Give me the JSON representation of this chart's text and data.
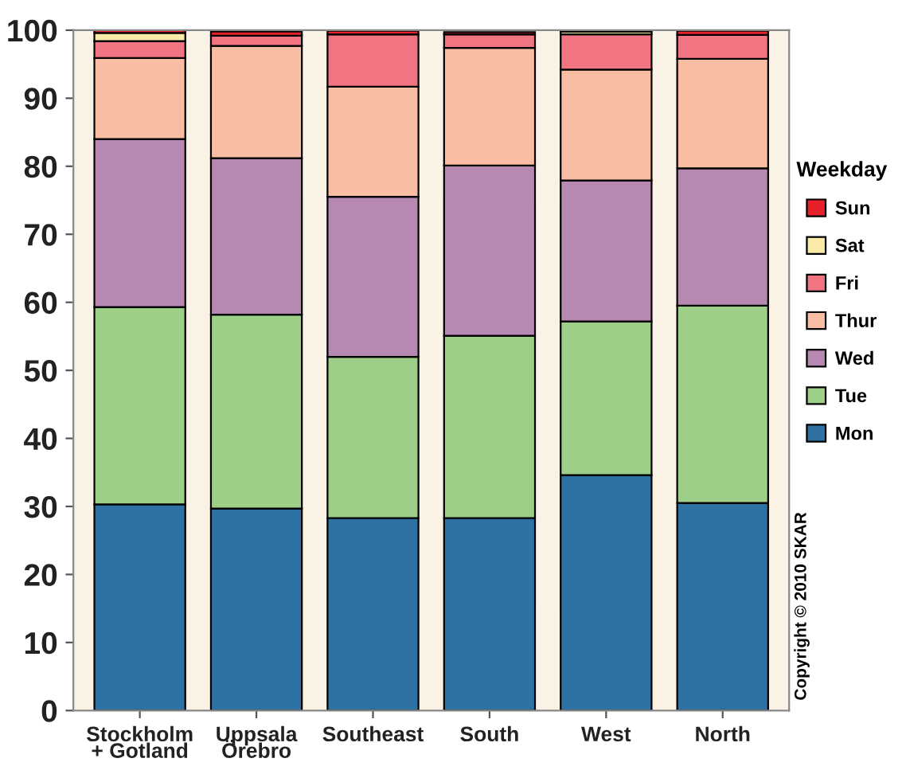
{
  "chart_data": {
    "type": "bar",
    "stacked": true,
    "categories": [
      "Stockholm\n+ Gotland",
      "Uppsala\nÖrebro",
      "Southeast",
      "South",
      "West",
      "North"
    ],
    "series": [
      {
        "name": "Mon",
        "color": "#2e72a4",
        "values": [
          30.3,
          29.7,
          28.3,
          28.3,
          34.6,
          30.5
        ]
      },
      {
        "name": "Tue",
        "color": "#9ecf88",
        "values": [
          29.0,
          28.5,
          23.7,
          26.8,
          22.6,
          29.0
        ]
      },
      {
        "name": "Wed",
        "color": "#b688b2",
        "values": [
          24.7,
          23.0,
          23.5,
          25.0,
          20.7,
          20.2
        ]
      },
      {
        "name": "Thur",
        "color": "#f9bda4",
        "values": [
          11.9,
          16.5,
          16.2,
          17.3,
          16.3,
          16.1
        ]
      },
      {
        "name": "Fri",
        "color": "#f07482",
        "values": [
          2.5,
          1.5,
          7.7,
          2.0,
          5.2,
          3.5
        ]
      },
      {
        "name": "Sat",
        "color": "#faeaa8",
        "values": [
          1.2,
          null,
          null,
          null,
          0.4,
          null
        ]
      },
      {
        "name": "Sun",
        "color": "#e8202a",
        "values": [
          0.4,
          0.6,
          0.5,
          0.3,
          0.2,
          0.6
        ]
      }
    ],
    "ylim": [
      0,
      100
    ],
    "yticks": [
      0,
      10,
      20,
      30,
      40,
      50,
      60,
      70,
      80,
      90,
      100
    ],
    "legend": "right",
    "legend_title": "Weekday",
    "grid": false,
    "annotations": [
      "Copyright © 2010 SKAR"
    ]
  }
}
